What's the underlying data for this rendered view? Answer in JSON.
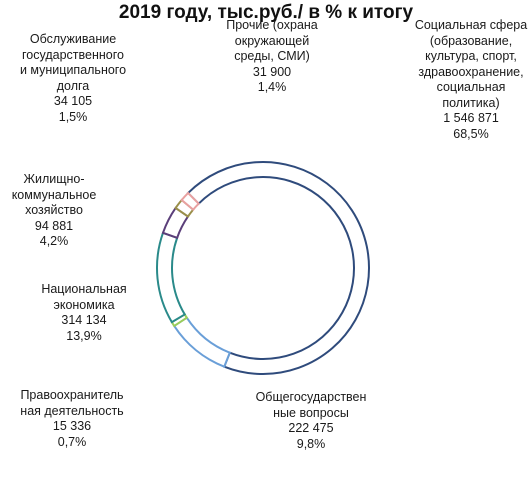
{
  "chart_data": {
    "type": "donut",
    "title": "2019 году, тыс.руб./ в % к итогу",
    "categories": [
      "Социальная сфера (образование, культура, спорт, здравоохранение, социальная политика)",
      "Общегосударственные вопросы",
      "Правоохранительная деятельность",
      "Национальная экономика",
      "Жилищно-коммунальное хозяйство",
      "Обслуживание государственного и муниципального долга",
      "Прочие (охрана окружающей среды, СМИ)"
    ],
    "values": [
      1546871,
      222475,
      15336,
      314134,
      94881,
      34105,
      31900
    ],
    "value_labels": [
      "1 546 871",
      "222 475",
      "15 336",
      "314 134",
      "94 881",
      "34 105",
      "31 900"
    ],
    "percents": [
      68.5,
      9.8,
      0.7,
      13.9,
      4.2,
      1.5,
      1.4
    ],
    "percent_labels": [
      "68,5%",
      "9,8%",
      "0,7%",
      "13,9%",
      "4,2%",
      "1,5%",
      "1,4%"
    ],
    "colors": [
      "#2f4b7c",
      "#6a9fd8",
      "#9acd5a",
      "#2a8a8a",
      "#5b3f7a",
      "#9a8f4a",
      "#e8a0a0"
    ]
  }
}
